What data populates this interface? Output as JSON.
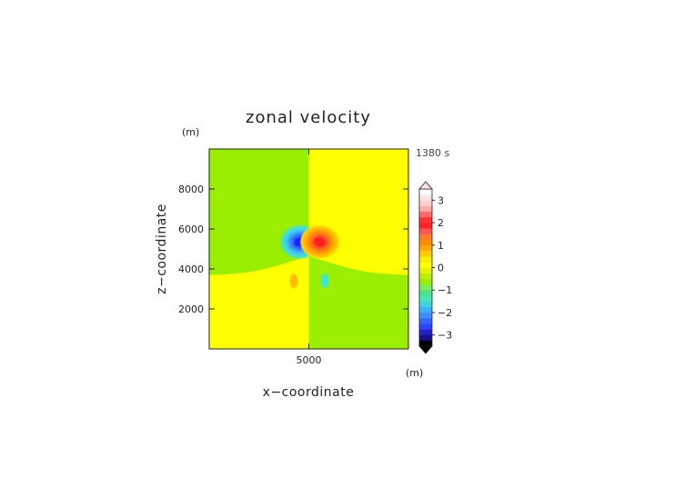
{
  "chart_data": {
    "type": "heatmap",
    "title": "zonal velocity",
    "xlabel": "x−coordinate",
    "ylabel": "z−coordinate",
    "x_unit": "(m)",
    "y_unit": "(m)",
    "time_label": "1380 s",
    "xlim": [
      0,
      10000
    ],
    "ylim": [
      0,
      10000
    ],
    "x_ticks": [
      5000
    ],
    "y_ticks": [
      2000,
      4000,
      6000,
      8000
    ],
    "x_tick_labels": [
      "5000"
    ],
    "y_tick_labels": [
      "2000",
      "4000",
      "6000",
      "8000"
    ],
    "colorbar": {
      "range": [
        -3.5,
        3.5
      ],
      "step": 0.25,
      "tick_values": [
        3,
        2,
        1,
        0,
        -1,
        -2,
        -3
      ],
      "tick_labels": [
        "3",
        "2",
        "1",
        "0",
        "−1",
        "−2",
        "−3"
      ],
      "colors": [
        "#000000",
        "#1a0f8a",
        "#2222c0",
        "#2a44ff",
        "#3366ff",
        "#3f8cff",
        "#3fb0ff",
        "#3fd3e0",
        "#46e6b8",
        "#50e08a",
        "#79ee5a",
        "#9aee00",
        "#bbee00",
        "#e6f200",
        "#ffff00",
        "#ffee00",
        "#ffcc00",
        "#ffaa00",
        "#ff8c00",
        "#ff7a2a",
        "#ff5555",
        "#ff2222",
        "#ff3333",
        "#ff6a6a",
        "#ffaaaa",
        "#ffd0d0",
        "#ffe4e4",
        "#ffffff"
      ],
      "neg_overflow_color": "#000000",
      "pos_overflow_color": "#ffe0e0"
    },
    "field_features": [
      {
        "type": "vortex",
        "sign": "negative",
        "x": 4550,
        "z": 5350,
        "peak": -2.6,
        "color": "#1a22ff"
      },
      {
        "type": "vortex",
        "sign": "positive",
        "x": 5550,
        "z": 5350,
        "peak": 2.3,
        "color": "#ff1e1e"
      },
      {
        "type": "blob",
        "sign": "positive",
        "x": 4250,
        "z": 3400,
        "peak": 0.6,
        "color": "#ffbb00"
      },
      {
        "type": "blob",
        "sign": "negative",
        "x": 5800,
        "z": 3400,
        "peak": -0.8,
        "color": "#3fe6d0"
      }
    ],
    "background_regions": [
      {
        "region": "upper-left",
        "value": -0.1,
        "color": "#9aee00"
      },
      {
        "region": "upper-right",
        "value": 0.1,
        "color": "#ffff00"
      },
      {
        "region": "lower-left",
        "value": 0.1,
        "color": "#ffff00"
      },
      {
        "region": "lower-right",
        "value": -0.1,
        "color": "#9aee00"
      }
    ],
    "background_split": {
      "center_x": 5000,
      "boundary_z_at_edges": 3700,
      "boundary_z_at_center": 4650
    }
  }
}
